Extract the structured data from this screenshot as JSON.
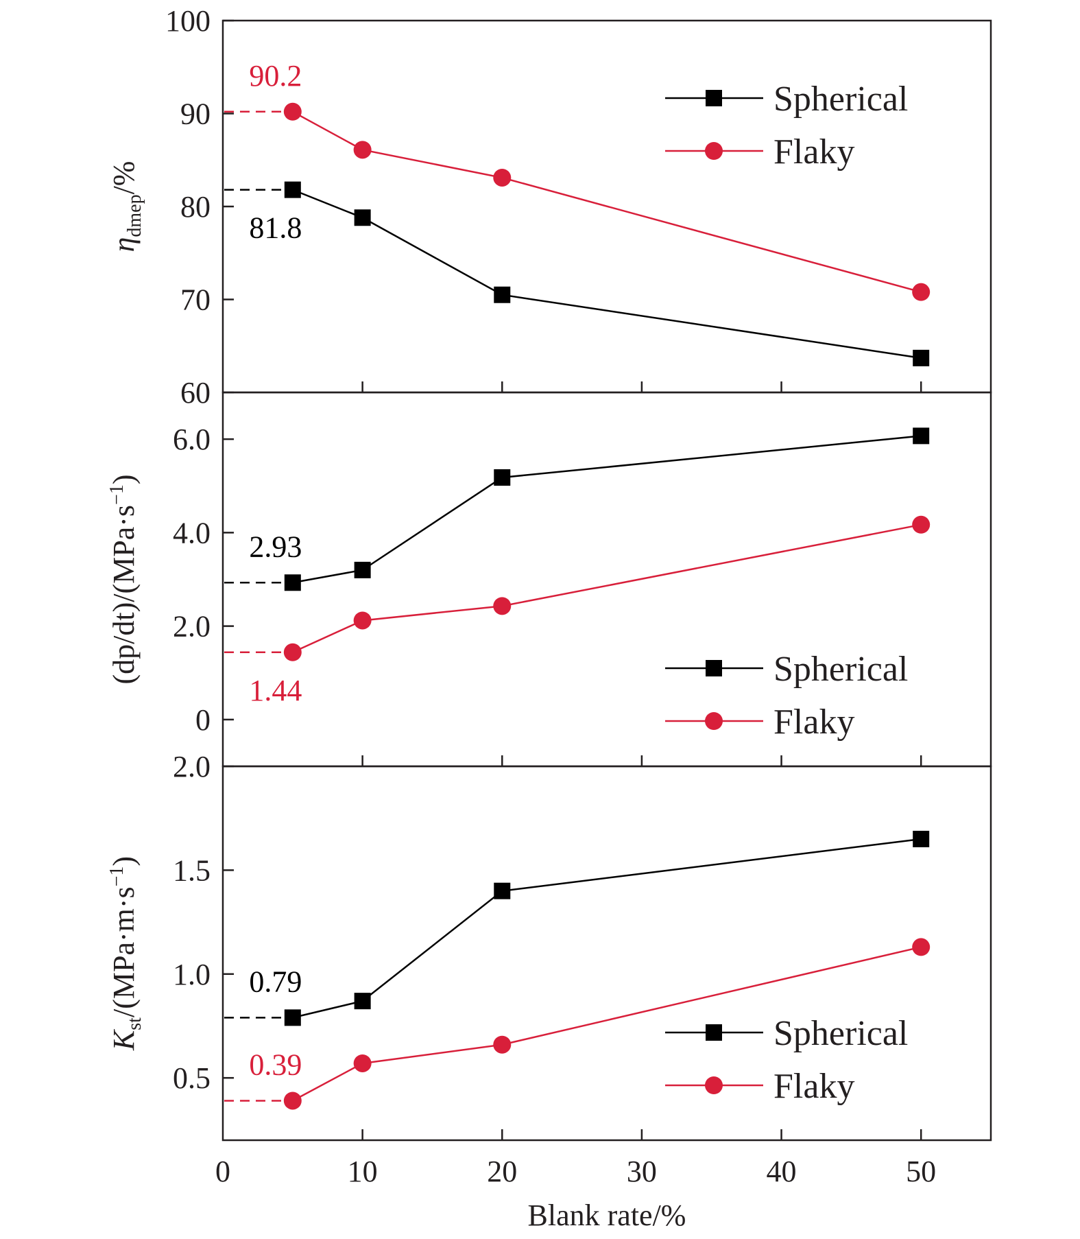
{
  "colors": {
    "spherical": "#000000",
    "flaky": "#d81f3a",
    "axis": "#231f20"
  },
  "chart_data": [
    {
      "type": "line",
      "ylabel": {
        "prefix": "η",
        "sub": "dmep",
        "suffix": "/%"
      },
      "ylim": [
        60,
        100
      ],
      "yticks": [
        {
          "v": 60,
          "label": "60"
        },
        {
          "v": 70,
          "label": "70"
        },
        {
          "v": 80,
          "label": "80"
        },
        {
          "v": 90,
          "label": "90"
        },
        {
          "v": 100,
          "label": "100"
        }
      ],
      "x": [
        5,
        10,
        20,
        50
      ],
      "series": [
        {
          "name": "Spherical",
          "marker": "square",
          "values": [
            81.8,
            78.8,
            70.5,
            63.7
          ]
        },
        {
          "name": "Flaky",
          "marker": "circle",
          "values": [
            90.2,
            86.1,
            83.1,
            70.8
          ]
        }
      ],
      "annotations": [
        {
          "text": "90.2",
          "series": "Flaky",
          "x": 5,
          "y": 90.2,
          "pos": "above"
        },
        {
          "text": "81.8",
          "series": "Spherical",
          "x": 5,
          "y": 81.8,
          "pos": "below"
        }
      ],
      "legend": "top-right"
    },
    {
      "type": "line",
      "ylabel": {
        "prefix": "(dp/dt)/(MPa·s",
        "sup": "−1",
        "suffix": ")"
      },
      "ylim": [
        -1,
        7
      ],
      "yticks": [
        {
          "v": 0,
          "label": "0"
        },
        {
          "v": 2,
          "label": "2.0"
        },
        {
          "v": 4,
          "label": "4.0"
        },
        {
          "v": 6,
          "label": "6.0"
        }
      ],
      "x": [
        5,
        10,
        20,
        50
      ],
      "series": [
        {
          "name": "Spherical",
          "marker": "square",
          "values": [
            2.93,
            3.2,
            5.18,
            6.07
          ]
        },
        {
          "name": "Flaky",
          "marker": "circle",
          "values": [
            1.44,
            2.12,
            2.43,
            4.17
          ]
        }
      ],
      "annotations": [
        {
          "text": "2.93",
          "series": "Spherical",
          "x": 5,
          "y": 2.93,
          "pos": "above"
        },
        {
          "text": "1.44",
          "series": "Flaky",
          "x": 5,
          "y": 1.44,
          "pos": "below"
        }
      ],
      "legend": "lower-right"
    },
    {
      "type": "line",
      "ylabel": {
        "prefix": "K",
        "sub": "st",
        "mid": "/(MPa·m·s",
        "sup": "−1",
        "suffix": ")"
      },
      "ylim": [
        0.2,
        2.0
      ],
      "yticks": [
        {
          "v": 0.5,
          "label": "0.5"
        },
        {
          "v": 1.0,
          "label": "1.0"
        },
        {
          "v": 1.5,
          "label": "1.5"
        },
        {
          "v": 2.0,
          "label": "2.0"
        }
      ],
      "x": [
        5,
        10,
        20,
        50
      ],
      "series": [
        {
          "name": "Spherical",
          "marker": "square",
          "values": [
            0.79,
            0.87,
            1.4,
            1.65
          ]
        },
        {
          "name": "Flaky",
          "marker": "circle",
          "values": [
            0.39,
            0.57,
            0.66,
            1.13
          ]
        }
      ],
      "annotations": [
        {
          "text": "0.79",
          "series": "Spherical",
          "x": 5,
          "y": 0.79,
          "pos": "above"
        },
        {
          "text": "0.39",
          "series": "Flaky",
          "x": 5,
          "y": 0.39,
          "pos": "above"
        }
      ],
      "legend": "lower-right"
    }
  ],
  "xaxis": {
    "label": "Blank rate/%",
    "xlim": [
      0,
      55
    ],
    "ticks": [
      {
        "v": 0,
        "label": "0"
      },
      {
        "v": 10,
        "label": "10"
      },
      {
        "v": 20,
        "label": "20"
      },
      {
        "v": 30,
        "label": "30"
      },
      {
        "v": 40,
        "label": "40"
      },
      {
        "v": 50,
        "label": "50"
      }
    ]
  }
}
